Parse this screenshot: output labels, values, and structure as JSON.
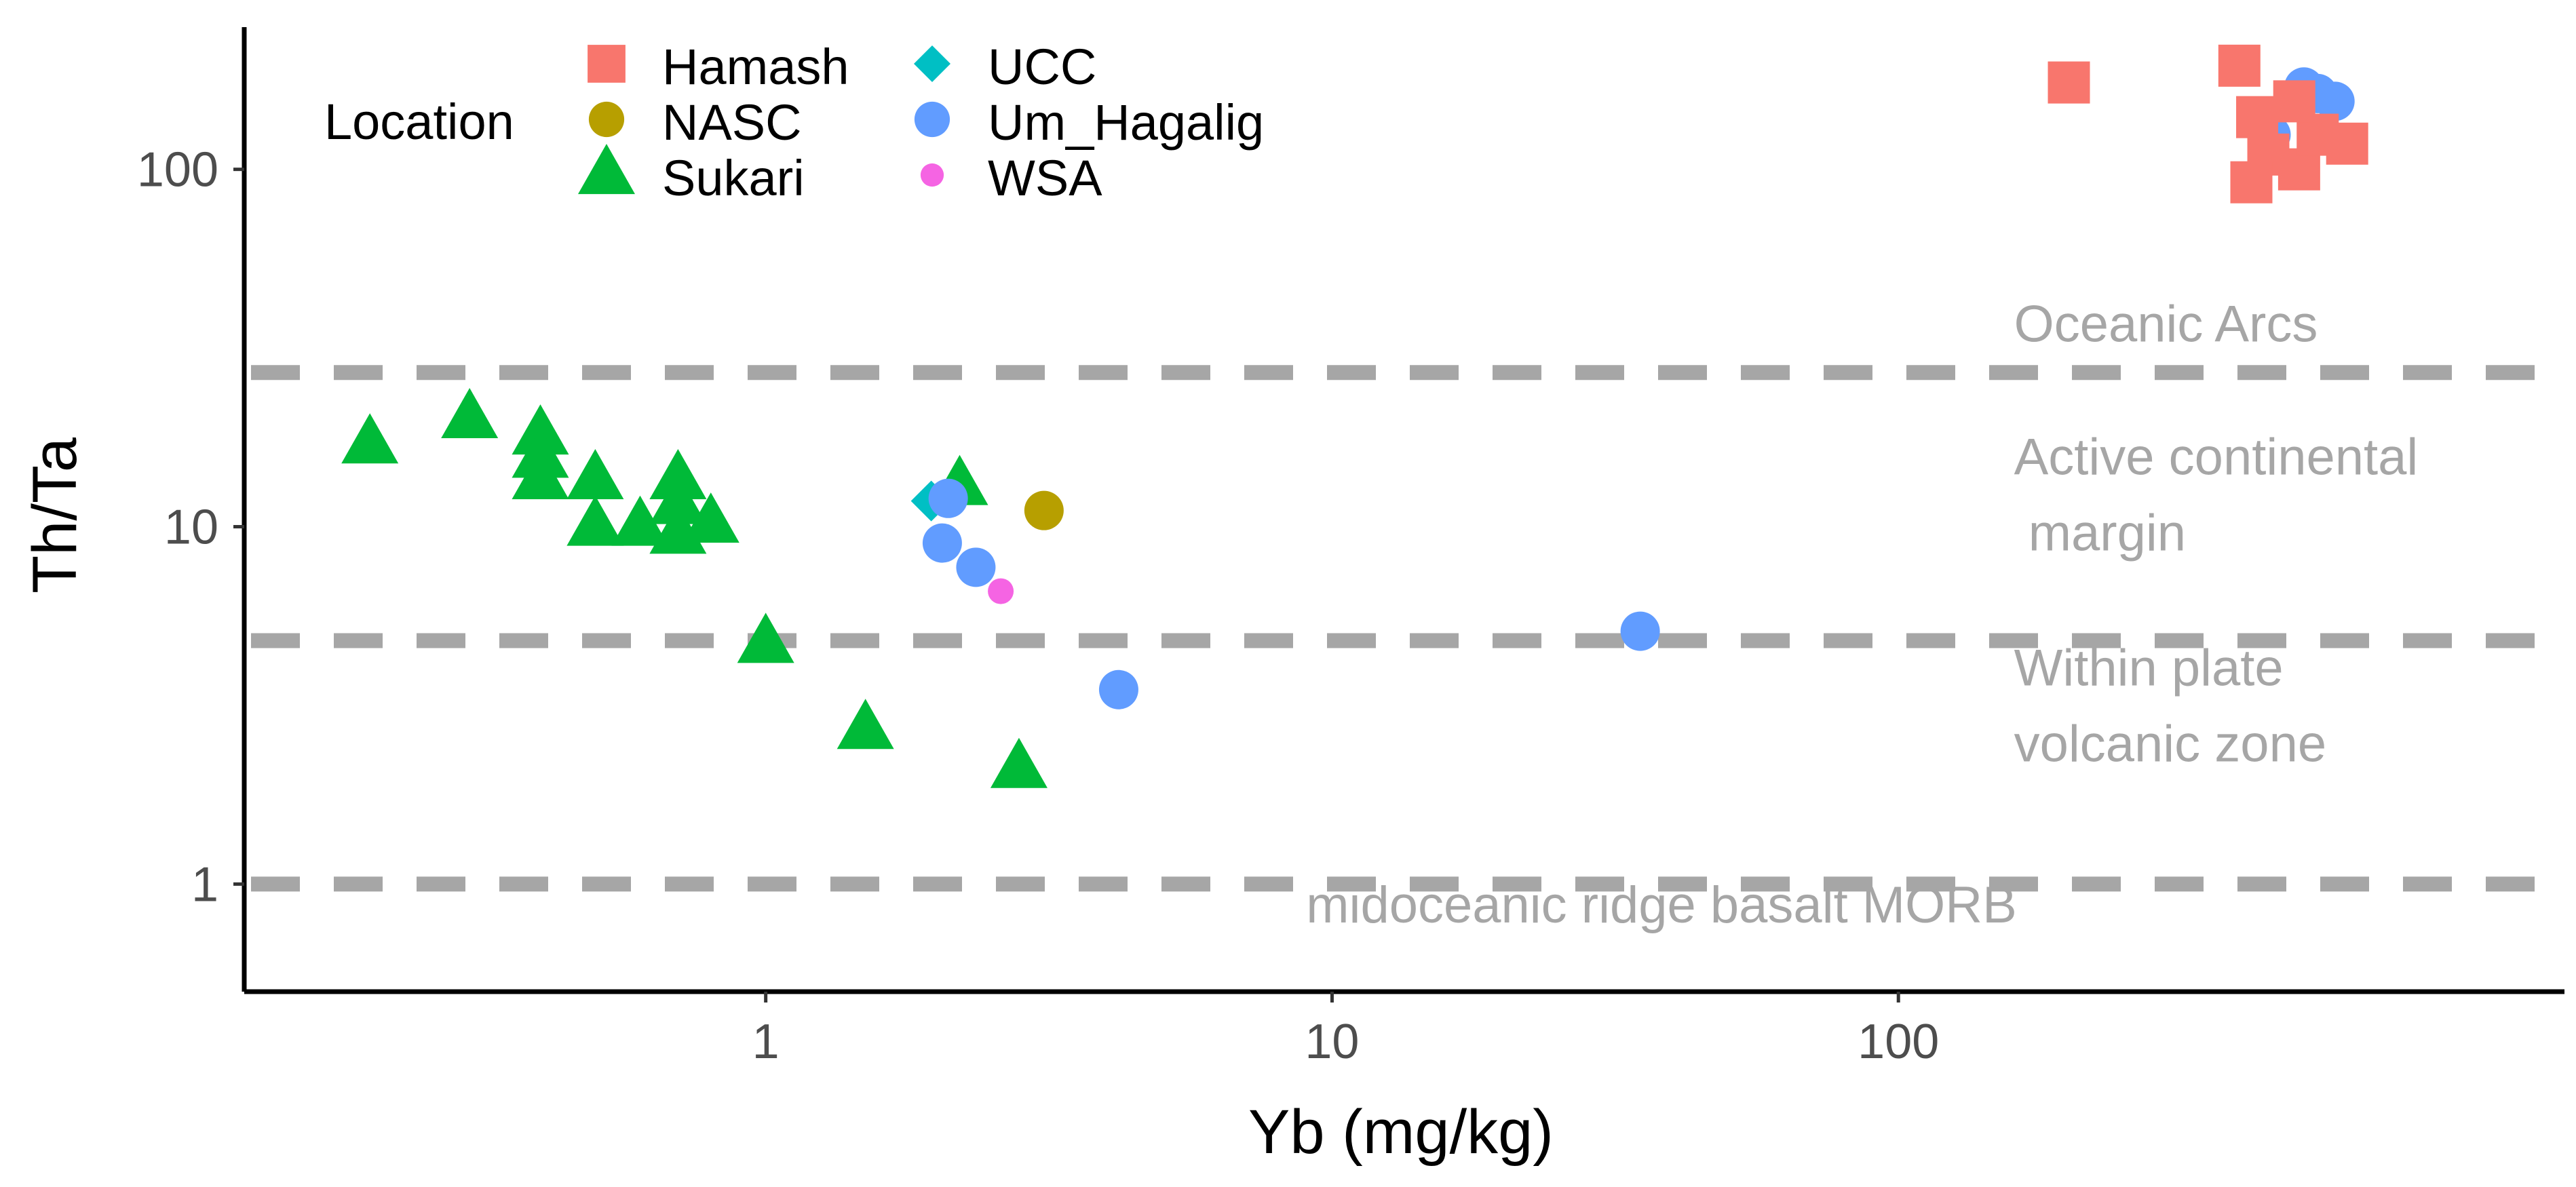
{
  "chart_data": {
    "type": "scatter",
    "xlabel": "Yb (mg/kg)",
    "ylabel": "Th/Ta",
    "x_scale": "log10",
    "y_scale": "log10",
    "xlim": [
      0.12,
      1500
    ],
    "ylim": [
      0.5,
      250
    ],
    "x_ticks": [
      1,
      10,
      100
    ],
    "x_tick_labels": [
      "1",
      "10",
      "100"
    ],
    "y_ticks": [
      1,
      10,
      100
    ],
    "y_tick_labels": [
      "1",
      "10",
      "100"
    ],
    "grid": false,
    "legend": {
      "title": "Location",
      "placement": "top-left",
      "entries": [
        "Hamash",
        "NASC",
        "Sukari",
        "UCC",
        "Um_Hagalig",
        "WSA"
      ]
    },
    "reference_lines": [
      {
        "y": 27,
        "style": "dashed",
        "color": "#a6a6a6"
      },
      {
        "y": 4.8,
        "style": "dashed",
        "color": "#a6a6a6"
      },
      {
        "y": 1,
        "style": "dashed",
        "color": "#a6a6a6"
      }
    ],
    "annotations": [
      {
        "lines": [
          "Oceanic Arcs"
        ],
        "x": 160,
        "y": 33
      },
      {
        "lines": [
          "Active continental",
          " margin"
        ],
        "x": 160,
        "y": 14
      },
      {
        "lines": [
          "Within plate",
          "volcanic zone"
        ],
        "x": 160,
        "y": 3.6
      },
      {
        "lines": [
          "midoceanic ridge basalt MORB"
        ],
        "x": 9,
        "y": 0.78
      }
    ],
    "series": [
      {
        "name": "Sukari",
        "marker": "triangle",
        "color": "#00ba38",
        "points": [
          [
            0.2,
            17
          ],
          [
            0.3,
            20
          ],
          [
            0.4,
            18
          ],
          [
            0.4,
            15.5
          ],
          [
            0.4,
            13.5
          ],
          [
            0.5,
            13.5
          ],
          [
            0.5,
            10
          ],
          [
            0.6,
            10
          ],
          [
            0.7,
            13.5
          ],
          [
            0.7,
            11.5
          ],
          [
            0.7,
            9.5
          ],
          [
            0.8,
            10.2
          ],
          [
            1.0,
            4.7
          ],
          [
            1.5,
            2.7
          ],
          [
            2.2,
            13
          ],
          [
            2.8,
            2.1
          ]
        ]
      },
      {
        "name": "UCC",
        "marker": "diamond",
        "color": "#00bfc4",
        "points": [
          [
            1.96,
            11.8
          ]
        ]
      },
      {
        "name": "NASC",
        "marker": "circle",
        "color": "#b79f00",
        "points": [
          [
            3.1,
            11.1
          ]
        ]
      },
      {
        "name": "WSA",
        "marker": "circle-small",
        "color": "#f564e3",
        "points": [
          [
            2.6,
            6.6
          ]
        ]
      },
      {
        "name": "Um_Hagalig",
        "marker": "circle",
        "color": "#619cff",
        "points": [
          [
            2.1,
            12
          ],
          [
            2.05,
            9
          ],
          [
            2.35,
            7.7
          ],
          [
            4.2,
            3.5
          ],
          [
            35,
            5.1
          ],
          [
            455,
            125
          ],
          [
            520,
            170
          ],
          [
            550,
            163
          ],
          [
            590,
            155
          ]
        ]
      },
      {
        "name": "Hamash",
        "marker": "square",
        "color": "#f8766d",
        "points": [
          [
            200,
            175
          ],
          [
            400,
            195
          ],
          [
            430,
            140
          ],
          [
            450,
            110
          ],
          [
            510,
            100
          ],
          [
            550,
            125
          ],
          [
            620,
            118
          ],
          [
            420,
            92
          ],
          [
            500,
            155
          ]
        ]
      }
    ]
  }
}
